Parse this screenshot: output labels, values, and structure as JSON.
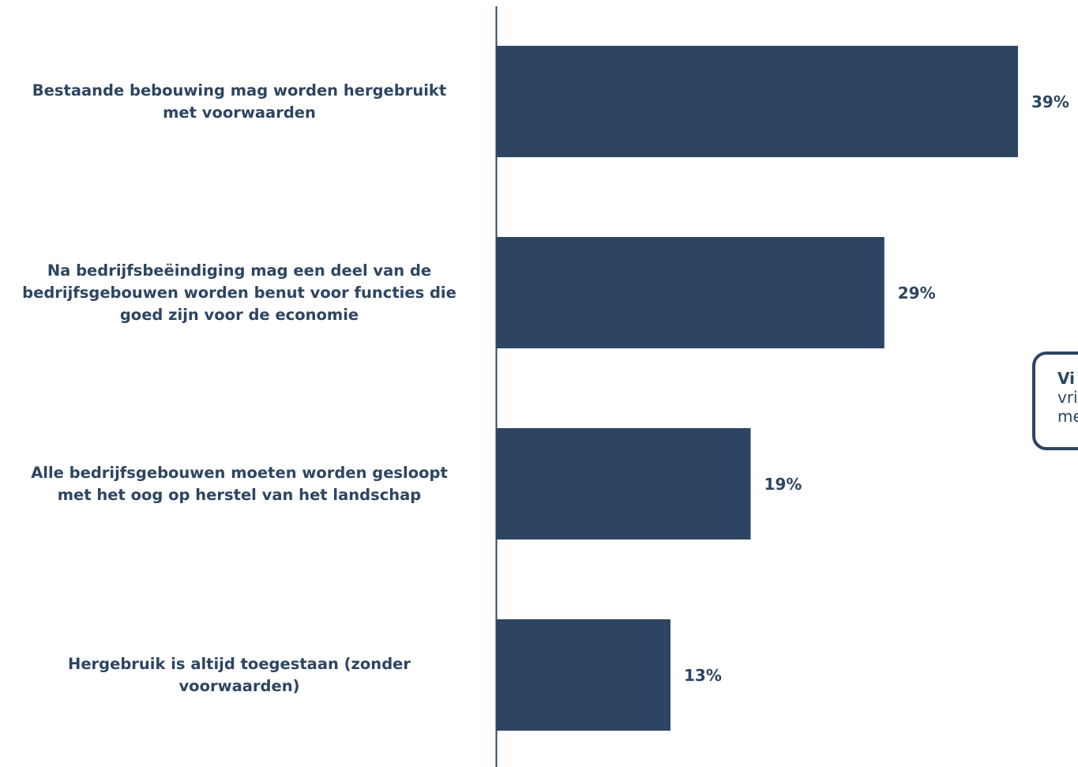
{
  "chart_data": {
    "type": "bar",
    "orientation": "horizontal",
    "categories": [
      "Bestaande bebouwing mag worden hergebruikt met voorwaarden",
      "Na bedrijfsbeëindiging mag een deel van de bedrijfsgebouwen worden benut voor functies die goed zijn voor de economie",
      "Alle bedrijfsgebouwen moeten worden gesloopt met het oog op herstel van het landschap",
      "Hergebruik is altijd toegestaan (zonder voorwaarden)"
    ],
    "category_lines": [
      "Bestaande bebouwing mag worden hergebruikt\nmet voorwaarden",
      "Na bedrijfsbeëindiging mag een deel van de\nbedrijfsgebouwen worden benut voor functies die\ngoed zijn voor de economie",
      "Alle bedrijfsgebouwen moeten worden gesloopt\nmet het oog op herstel van het landschap",
      "Hergebruik is altijd toegestaan (zonder\nvoorwaarden)"
    ],
    "values": [
      39,
      29,
      19,
      13
    ],
    "value_labels": [
      "39%",
      "29%",
      "19%",
      "13%"
    ],
    "unit": "%",
    "xlim": [
      0,
      39
    ],
    "grid": false,
    "legend": "none"
  },
  "callout": {
    "line1": "Vi",
    "line2": "vri",
    "line3": "me"
  },
  "colors": {
    "bar": "#2d4562",
    "text": "#2d4562",
    "axis": "#2d4562",
    "background": "#ffffff"
  }
}
